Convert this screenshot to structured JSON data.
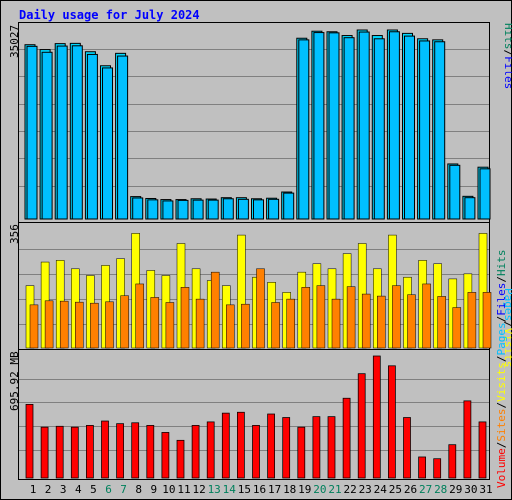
{
  "title": "Daily usage for July 2024",
  "chart_data": [
    {
      "type": "bar",
      "panel": "hits-files",
      "y_tick_label": "35027",
      "ylim": [
        0,
        35027
      ],
      "grid": true,
      "series": [
        {
          "name": "Hits",
          "color": "#00e4ff",
          "values": [
            32300,
            31400,
            32500,
            32550,
            31000,
            28400,
            30700,
            4150,
            3800,
            3600,
            3600,
            3750,
            3700,
            3950,
            3950,
            3750,
            3850,
            5000,
            33500,
            34800,
            34700,
            34000,
            35027,
            34000,
            35027,
            34400,
            33400,
            33200,
            10200,
            4200,
            9600
          ]
        },
        {
          "name": "Files",
          "color": "#00c0ff",
          "values": [
            32000,
            30900,
            32050,
            32100,
            30500,
            28000,
            30200,
            3900,
            3550,
            3350,
            3450,
            3500,
            3500,
            3750,
            3650,
            3550,
            3650,
            4800,
            33200,
            34550,
            34500,
            33600,
            34650,
            33400,
            34700,
            33900,
            33000,
            32850,
            9950,
            3950,
            9300
          ]
        }
      ]
    },
    {
      "type": "bar",
      "panel": "pages-visits-sites",
      "y_tick_label": "356",
      "ylim": [
        0,
        356
      ],
      "grid": true,
      "series": [
        {
          "name": "Pages",
          "color": "#00c0ff",
          "values": [
            0,
            0,
            0,
            0,
            0,
            0,
            0,
            0,
            0,
            0,
            0,
            0,
            0,
            0,
            0,
            0,
            0,
            0,
            0,
            0,
            0,
            0,
            0,
            0,
            0,
            0,
            0,
            0,
            0,
            0,
            0
          ]
        },
        {
          "name": "Visits",
          "color": "#ffff00",
          "values": [
            185,
            255,
            260,
            235,
            215,
            245,
            265,
            340,
            230,
            215,
            310,
            235,
            200,
            185,
            335,
            210,
            195,
            165,
            225,
            250,
            235,
            280,
            310,
            235,
            335,
            210,
            260,
            250,
            205,
            220,
            340
          ]
        },
        {
          "name": "Sites",
          "color": "#ff8000",
          "values": [
            128,
            140,
            139,
            136,
            133,
            137,
            155,
            190,
            150,
            135,
            180,
            145,
            225,
            128,
            130,
            235,
            135,
            145,
            180,
            185,
            145,
            182,
            160,
            154,
            185,
            158,
            190,
            153,
            120,
            165,
            165
          ]
        }
      ]
    },
    {
      "type": "bar",
      "panel": "volume",
      "y_tick_label": "695.92 MB",
      "ylim": [
        0,
        695.92
      ],
      "grid": true,
      "series": [
        {
          "name": "Volume",
          "color": "#ff0000",
          "values": [
            420,
            290,
            295,
            290,
            300,
            325,
            310,
            315,
            300,
            260,
            215,
            300,
            320,
            370,
            375,
            300,
            365,
            345,
            290,
            350,
            350,
            455,
            595,
            695.92,
            640,
            345,
            120,
            110,
            190,
            440,
            320
          ]
        }
      ]
    }
  ],
  "x_axis": {
    "labels": [
      "1",
      "2",
      "3",
      "4",
      "5",
      "6",
      "7",
      "8",
      "9",
      "10",
      "11",
      "12",
      "13",
      "14",
      "15",
      "16",
      "17",
      "18",
      "19",
      "20",
      "21",
      "22",
      "23",
      "24",
      "25",
      "26",
      "27",
      "28",
      "29",
      "30",
      "31"
    ],
    "weekend_days": [
      "6",
      "7",
      "13",
      "14",
      "20",
      "21",
      "27",
      "28"
    ],
    "weekday_color": "#000000",
    "weekend_color": "#00805c"
  },
  "legend": {
    "hits_files": [
      {
        "label": "Hits",
        "color": "#00805c"
      },
      {
        "label": "/",
        "color": "#000000"
      },
      {
        "label": "Files",
        "color": "#0000ff"
      }
    ],
    "pages_visits": [
      {
        "label": "Pages",
        "color": "#00c0ff"
      },
      {
        "label": "/",
        "color": "#000000"
      },
      {
        "label": "Visits",
        "color": "#ffff00"
      }
    ],
    "sites_volume": [
      {
        "label": "Volume",
        "color": "#ff0000"
      },
      {
        "label": "/",
        "color": "#000000"
      },
      {
        "label": "Sites",
        "color": "#ff8000"
      },
      {
        "label": "/",
        "color": "#000000"
      },
      {
        "label": "Visits",
        "color": "#ffff00"
      },
      {
        "label": "/",
        "color": "#000000"
      },
      {
        "label": "Pages",
        "color": "#00c0ff"
      },
      {
        "label": "/",
        "color": "#000000"
      },
      {
        "label": "Files",
        "color": "#0000ff"
      },
      {
        "label": "/",
        "color": "#000000"
      },
      {
        "label": "Hits",
        "color": "#00805c"
      }
    ]
  }
}
